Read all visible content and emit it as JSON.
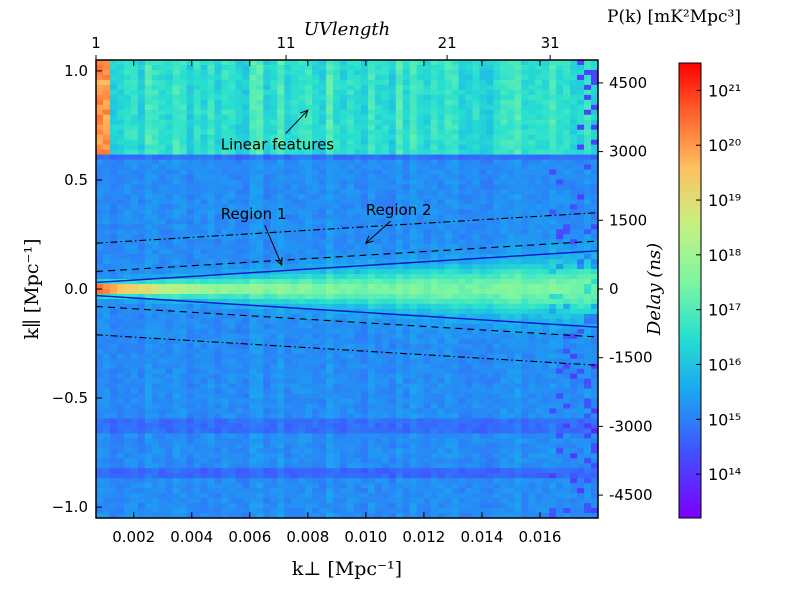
{
  "chart_data": {
    "type": "heatmap",
    "title": "",
    "xlabel_bottom": "k⊥ [Mpc⁻¹]",
    "ylabel_left": "k∥ [Mpc⁻¹]",
    "xlabel_top": "UVlength",
    "ylabel_right": "Delay (ns)",
    "colorbar_label": "P(k) [mK²Mpc³]",
    "x_range": [
      0.0007,
      0.018
    ],
    "y_range": [
      -1.05,
      1.05
    ],
    "delay_range": [
      -5000,
      5000
    ],
    "x_ticks": [
      0.002,
      0.004,
      0.006,
      0.008,
      0.01,
      0.012,
      0.014,
      0.016
    ],
    "x_tick_labels": [
      "0.002",
      "0.004",
      "0.006",
      "0.008",
      "0.010",
      "0.012",
      "0.014",
      "0.016"
    ],
    "y_ticks": [
      -1.0,
      -0.5,
      0.0,
      0.5,
      1.0
    ],
    "y_tick_labels": [
      "−1.0",
      "−0.5",
      "0.0",
      "0.5",
      "1.0"
    ],
    "top_ticks": [
      1,
      11,
      21,
      31
    ],
    "top_tick_labels": [
      "1",
      "11",
      "21",
      "31"
    ],
    "top_tick_positions_kperp": [
      0.0007,
      0.00725,
      0.0128,
      0.01635
    ],
    "right_ticks": [
      4500,
      3000,
      1500,
      0,
      -1500,
      -3000,
      -4500
    ],
    "right_tick_labels": [
      "4500",
      "3000",
      "1500",
      "0",
      "-1500",
      "-3000",
      "-4500"
    ],
    "colorbar_range_log10": [
      13.2,
      21.5
    ],
    "colorbar_ticks_log10": [
      14,
      15,
      16,
      17,
      18,
      19,
      20,
      21
    ],
    "colorbar_tick_labels": [
      "10¹⁴",
      "10¹⁵",
      "10¹⁶",
      "10¹⁷",
      "10¹⁸",
      "10¹⁹",
      "10²⁰",
      "10²¹"
    ],
    "linear_feature_boundary_k_parallel": 0.61,
    "lines": [
      {
        "name": "horizon",
        "style": "solid",
        "color": "#1414c8",
        "y_start": 0.03,
        "y_end": 0.175
      },
      {
        "name": "horizon-buffer",
        "style": "dashed",
        "color": "#000000",
        "y_start": 0.08,
        "y_end": 0.22
      },
      {
        "name": "dotdash-limit",
        "style": "dashdot",
        "color": "#000000",
        "y_start": 0.21,
        "y_end": 0.35
      }
    ],
    "annotations": [
      {
        "text": "Linear features",
        "x": 0.005,
        "y": 0.64,
        "arrow_to": [
          0.008,
          0.82
        ]
      },
      {
        "text": "Region 1",
        "x": 0.005,
        "y": 0.32,
        "arrow_to": [
          0.0071,
          0.11
        ]
      },
      {
        "text": "Region 2",
        "x": 0.01,
        "y": 0.34,
        "arrow_to": [
          0.01,
          0.21
        ]
      }
    ]
  }
}
